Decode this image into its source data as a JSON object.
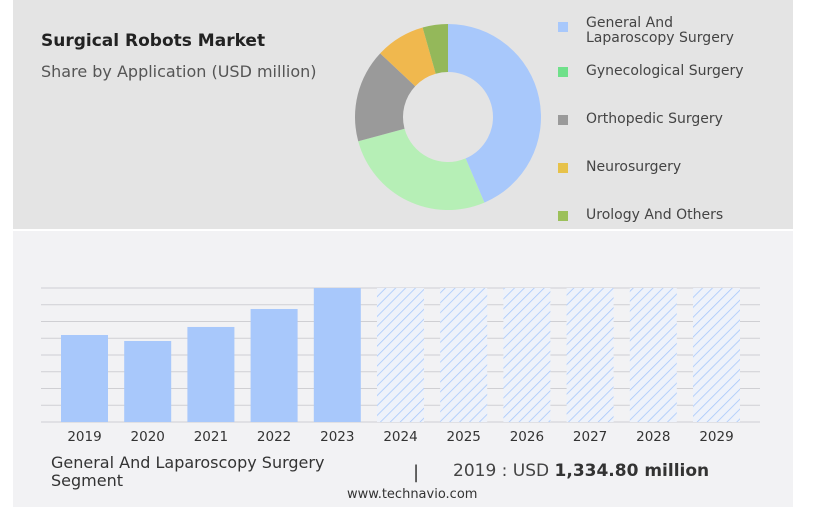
{
  "header": {
    "title": "Surgical Robots Market",
    "subtitle": "Share by Application (USD million)"
  },
  "colors": {
    "general": "#a8c8fb",
    "gyne": "#b6efb6",
    "ortho": "#9a9a9a",
    "neuro": "#f0b84e",
    "urology": "#94b85a",
    "legend_gyne": "#6fe08a",
    "legend_neuro": "#e7c24a",
    "legend_urology": "#9cc05a"
  },
  "chart_data": [
    {
      "type": "pie",
      "title": "Share by Application (USD million)",
      "donut": true,
      "labels": [
        "General And Laparoscopy Surgery",
        "Gynecological Surgery",
        "Orthopedic Surgery",
        "Neurosurgery",
        "Urology And Others"
      ],
      "values": [
        43.6,
        27.2,
        16.2,
        8.6,
        4.4
      ],
      "legend": "right"
    },
    {
      "type": "bar",
      "title": "General And Laparoscopy Surgery Segment",
      "categories": [
        "2019",
        "2020",
        "2021",
        "2022",
        "2023",
        "2024",
        "2025",
        "2026",
        "2027",
        "2028",
        "2029"
      ],
      "values": [
        1334.8,
        1243,
        1458,
        1734,
        2056,
        null,
        null,
        null,
        null,
        null,
        null
      ],
      "forecast": [
        "2024",
        "2025",
        "2026",
        "2027",
        "2028",
        "2029"
      ],
      "grid": true
    }
  ],
  "footer": {
    "segment": "General And Laparoscopy Surgery Segment",
    "separator": "|",
    "year_label": "2019 : USD ",
    "value": "1,334.80 million",
    "source": "www.technavio.com"
  }
}
